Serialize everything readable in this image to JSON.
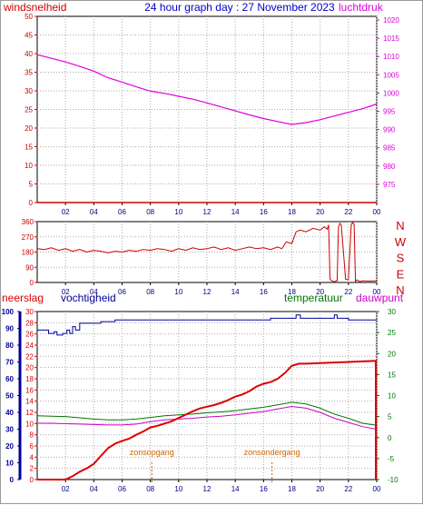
{
  "header": {
    "left_label": "windsnelheid",
    "title": "24 hour graph day : 27 November 2023",
    "right_label": "luchtdruk"
  },
  "bottom_labels": {
    "rain": "neerslag",
    "humidity": "vochtigheid",
    "temperature": "temperatuur",
    "dewpoint": "dauwpunt",
    "sunrise": "zonsopgang",
    "sunset": "zonsondergang"
  },
  "colors": {
    "wind": "#cc0000",
    "pressure": "#dd00dd",
    "direction": "#cc0000",
    "rain": "#dd0000",
    "humidity": "#000099",
    "temperature": "#007700",
    "dewpoint": "#cc00cc",
    "grid": "#aaaaaa",
    "sun": "#cc6600"
  },
  "chart_data": [
    {
      "type": "line",
      "id": "wind_pressure",
      "title": "24 hour graph day : 27 November 2023",
      "x_ticks": [
        "02",
        "04",
        "06",
        "08",
        "10",
        "12",
        "14",
        "16",
        "18",
        "20",
        "22",
        "00"
      ],
      "xlim": [
        0,
        24
      ],
      "left_axis": {
        "label": "windsnelheid",
        "ticks": [
          0,
          5,
          10,
          15,
          20,
          25,
          30,
          35,
          40,
          45,
          50
        ],
        "ylim": [
          0,
          50
        ]
      },
      "right_axis": {
        "label": "luchtdruk",
        "ticks": [
          975,
          980,
          985,
          990,
          995,
          1000,
          1005,
          1010,
          1015,
          1020
        ],
        "ylim": [
          970,
          1021
        ]
      },
      "series": [
        {
          "name": "luchtdruk",
          "axis": "right",
          "x": [
            0,
            1,
            2,
            3,
            4,
            5,
            6,
            7,
            8,
            9,
            10,
            11,
            12,
            13,
            14,
            15,
            16,
            17,
            18,
            19,
            20,
            21,
            22,
            23,
            24
          ],
          "y": [
            1010.5,
            1009.5,
            1008.5,
            1007.3,
            1006,
            1004.2,
            1003,
            1001.7,
            1000.5,
            999.9,
            999.1,
            998.3,
            997.3,
            996.2,
            995.1,
            994.0,
            993.0,
            992.2,
            991.4,
            991.9,
            992.7,
            993.7,
            994.7,
            995.7,
            997.0
          ]
        },
        {
          "name": "windsnelheid",
          "axis": "left",
          "x": [
            0,
            24
          ],
          "y": [
            0,
            0
          ]
        }
      ]
    },
    {
      "type": "line",
      "id": "wind_direction",
      "x_ticks": [
        "02",
        "04",
        "06",
        "08",
        "10",
        "12",
        "14",
        "16",
        "18",
        "20",
        "22",
        "00"
      ],
      "xlim": [
        0,
        24
      ],
      "left_axis": {
        "ticks": [
          0,
          90,
          180,
          270,
          360
        ],
        "ylim": [
          0,
          360
        ]
      },
      "compass": [
        "N",
        "W",
        "S",
        "E",
        "N"
      ],
      "series": [
        {
          "name": "windrichting",
          "x": [
            0,
            0.5,
            1,
            1.5,
            2,
            2.5,
            3,
            3.5,
            4,
            4.5,
            5,
            5.5,
            6,
            6.5,
            7,
            7.5,
            8,
            8.5,
            9,
            9.5,
            10,
            10.5,
            11,
            11.5,
            12,
            12.5,
            13,
            13.5,
            14,
            14.5,
            15,
            15.5,
            16,
            16.5,
            17,
            17.3,
            17.6,
            18,
            18.3,
            18.6,
            19,
            19.5,
            20,
            20.3,
            20.5,
            20.6,
            20.7,
            20.8,
            21.0,
            21.2,
            21.3,
            21.4,
            21.5,
            21.8,
            22,
            22.2,
            22.3,
            22.4,
            22.5,
            22.6,
            22.7,
            22.8,
            23,
            23.5,
            24
          ],
          "y": [
            200,
            195,
            205,
            190,
            200,
            185,
            195,
            180,
            190,
            185,
            175,
            185,
            180,
            190,
            185,
            195,
            190,
            200,
            195,
            185,
            200,
            190,
            205,
            195,
            200,
            210,
            195,
            205,
            190,
            200,
            210,
            200,
            205,
            195,
            210,
            200,
            240,
            230,
            300,
            310,
            300,
            320,
            310,
            330,
            315,
            340,
            20,
            10,
            5,
            10,
            330,
            350,
            340,
            20,
            15,
            340,
            355,
            345,
            5,
            15,
            10,
            5,
            10,
            8,
            10
          ]
        }
      ]
    },
    {
      "type": "line",
      "id": "rain_humidity_temperature",
      "x_ticks": [
        "02",
        "04",
        "06",
        "08",
        "10",
        "12",
        "14",
        "16",
        "18",
        "20",
        "22",
        "00"
      ],
      "xlim": [
        0,
        24
      ],
      "humidity_axis": {
        "label": "vochtigheid",
        "ticks": [
          0,
          10,
          20,
          30,
          40,
          50,
          60,
          70,
          80,
          90,
          100
        ],
        "ylim": [
          0,
          100
        ]
      },
      "rain_axis": {
        "label": "neerslag",
        "ticks": [
          0,
          2,
          4,
          6,
          8,
          10,
          12,
          14,
          16,
          18,
          20,
          22,
          24,
          26,
          28,
          30
        ],
        "ylim": [
          0,
          30
        ]
      },
      "temperature_axis": {
        "label": "temperatuur",
        "ticks": [
          -10,
          -5,
          0,
          5,
          10,
          15,
          20,
          25,
          30
        ],
        "ylim": [
          -10,
          30
        ]
      },
      "annotations": [
        {
          "text": "zonsopgang",
          "x": 8.1
        },
        {
          "text": "zonsondergang",
          "x": 16.6
        }
      ],
      "series": [
        {
          "name": "neerslag",
          "axis": "rain",
          "x": [
            0,
            1,
            2,
            2.5,
            3,
            3.5,
            4,
            4.5,
            5,
            5.5,
            6,
            6.5,
            7,
            7.5,
            8,
            8.5,
            9,
            9.5,
            10,
            10.5,
            11,
            11.5,
            12,
            12.5,
            13,
            13.5,
            14,
            14.5,
            15,
            15.5,
            16,
            16.5,
            17,
            17.5,
            18,
            18.5,
            19,
            20,
            21,
            22,
            23,
            24
          ],
          "y": [
            0,
            0,
            0,
            0.6,
            1.4,
            2.0,
            2.8,
            4.2,
            5.6,
            6.4,
            6.9,
            7.3,
            8.0,
            8.6,
            9.3,
            9.6,
            10.0,
            10.4,
            11.0,
            11.6,
            12.2,
            12.7,
            13.0,
            13.3,
            13.7,
            14.2,
            14.8,
            15.2,
            15.8,
            16.6,
            17.1,
            17.4,
            18.0,
            19.0,
            20.3,
            20.7,
            20.7,
            20.8,
            20.9,
            21.0,
            21.1,
            21.2
          ]
        },
        {
          "name": "vochtigheid",
          "axis": "humidity",
          "x": [
            0,
            0.6,
            0.8,
            1.2,
            1.4,
            1.8,
            2.1,
            2.3,
            2.5,
            2.7,
            3,
            4,
            4.5,
            5,
            5.5,
            6,
            7,
            8,
            9,
            10,
            11,
            12,
            13,
            14,
            15,
            16,
            16.5,
            17,
            18,
            18.3,
            18.6,
            19,
            20,
            20.8,
            21,
            21.2,
            22,
            23,
            24
          ],
          "y": [
            89,
            89,
            87,
            88,
            86,
            87,
            89,
            87,
            91,
            89,
            93,
            93,
            94,
            94,
            95,
            95,
            95,
            95,
            95,
            95,
            95,
            95,
            95,
            95,
            95,
            95,
            96,
            96,
            96,
            98,
            96,
            96,
            96,
            96,
            98,
            96,
            95,
            95,
            95
          ]
        },
        {
          "name": "temperatuur",
          "axis": "temperature",
          "x": [
            0,
            1,
            2,
            3,
            4,
            5,
            6,
            7,
            8,
            9,
            10,
            11,
            12,
            13,
            14,
            15,
            16,
            17,
            18,
            19,
            20,
            21,
            22,
            23,
            24
          ],
          "y": [
            5.2,
            5.1,
            5.0,
            4.7,
            4.4,
            4.2,
            4.2,
            4.4,
            4.8,
            5.2,
            5.4,
            5.6,
            5.9,
            6.1,
            6.4,
            6.8,
            7.2,
            7.8,
            8.4,
            8.0,
            7.0,
            5.6,
            4.6,
            3.4,
            2.9
          ]
        },
        {
          "name": "dauwpunt",
          "axis": "temperature",
          "x": [
            0,
            1,
            2,
            3,
            4,
            5,
            6,
            7,
            8,
            9,
            10,
            11,
            12,
            13,
            14,
            15,
            16,
            17,
            18,
            19,
            20,
            21,
            22,
            23,
            24
          ],
          "y": [
            3.4,
            3.4,
            3.3,
            3.2,
            3.1,
            3.0,
            3.0,
            3.2,
            3.8,
            4.2,
            4.4,
            4.6,
            4.9,
            5.1,
            5.4,
            5.8,
            6.2,
            6.8,
            7.4,
            7.0,
            6.0,
            4.6,
            3.6,
            2.6,
            2.0
          ]
        }
      ]
    }
  ]
}
